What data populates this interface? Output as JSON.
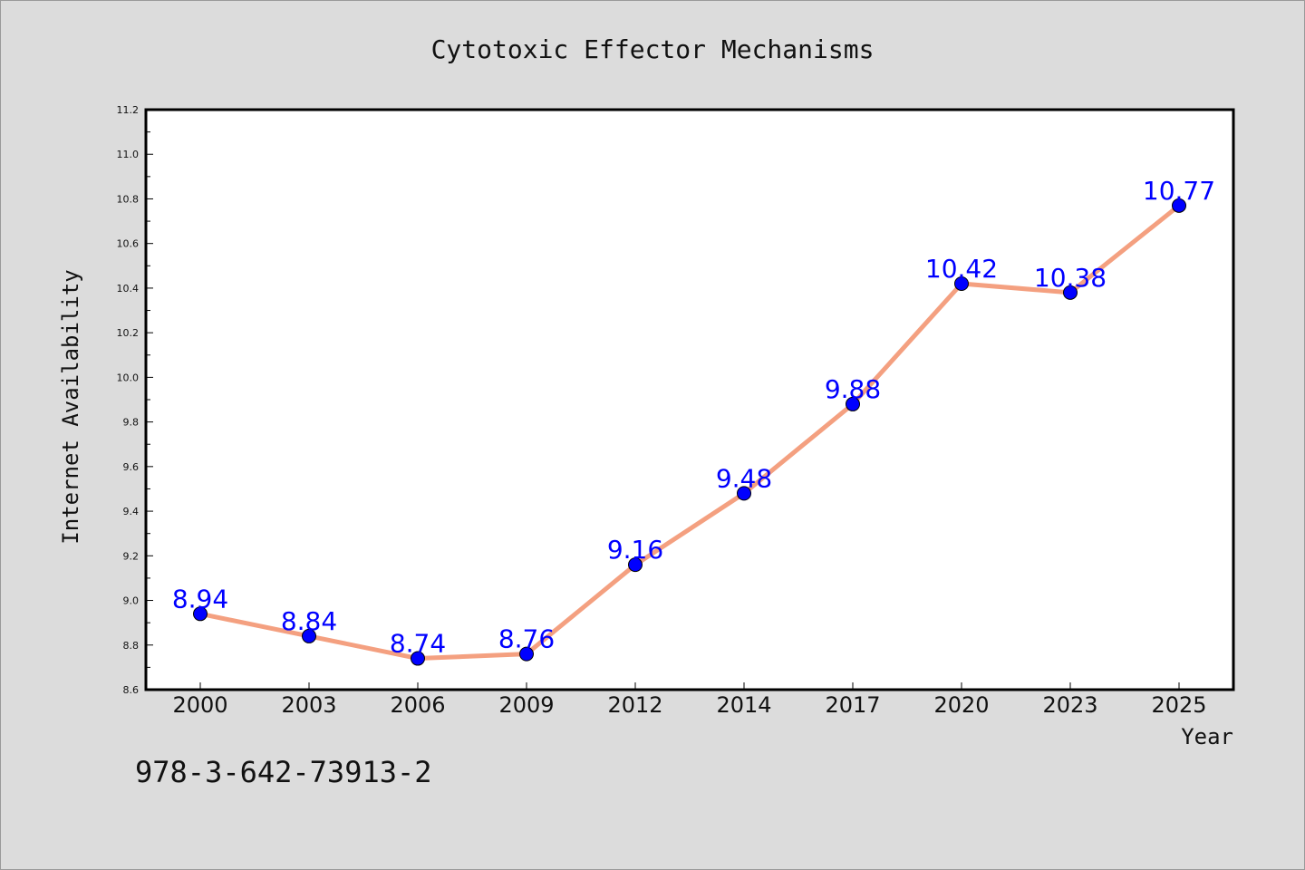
{
  "chart_data": {
    "type": "line",
    "title": "Cytotoxic Effector Mechanisms",
    "xlabel": "Year",
    "ylabel": "Internet Availability",
    "categories": [
      "2000",
      "2003",
      "2006",
      "2009",
      "2012",
      "2014",
      "2017",
      "2020",
      "2023",
      "2025"
    ],
    "series": [
      {
        "values": [
          8.94,
          8.84,
          8.74,
          8.76,
          9.16,
          9.48,
          9.88,
          10.42,
          10.38,
          10.77
        ],
        "data_labels": [
          "8.94",
          "8.84",
          "8.74",
          "8.76",
          "9.16",
          "9.48",
          "9.88",
          "10.42",
          "10.38",
          "10.77"
        ],
        "line_color": "#f4a080",
        "marker_color": "#0000ff",
        "label_color": "#0000ff"
      }
    ],
    "ylim": [
      8.6,
      11.2
    ],
    "yticks": [
      "8.6",
      "8.8",
      "9.0",
      "9.2",
      "9.4",
      "9.6",
      "9.8",
      "10.0",
      "10.2",
      "10.4",
      "10.6",
      "10.8",
      "11.0",
      "11.2"
    ],
    "grid": false,
    "legend": "none"
  },
  "footer": {
    "code": "978-3-642-73913-2"
  },
  "colors": {
    "figure_background": "#dcdcdc",
    "plot_background": "#ffffff",
    "axis": "#000000"
  }
}
